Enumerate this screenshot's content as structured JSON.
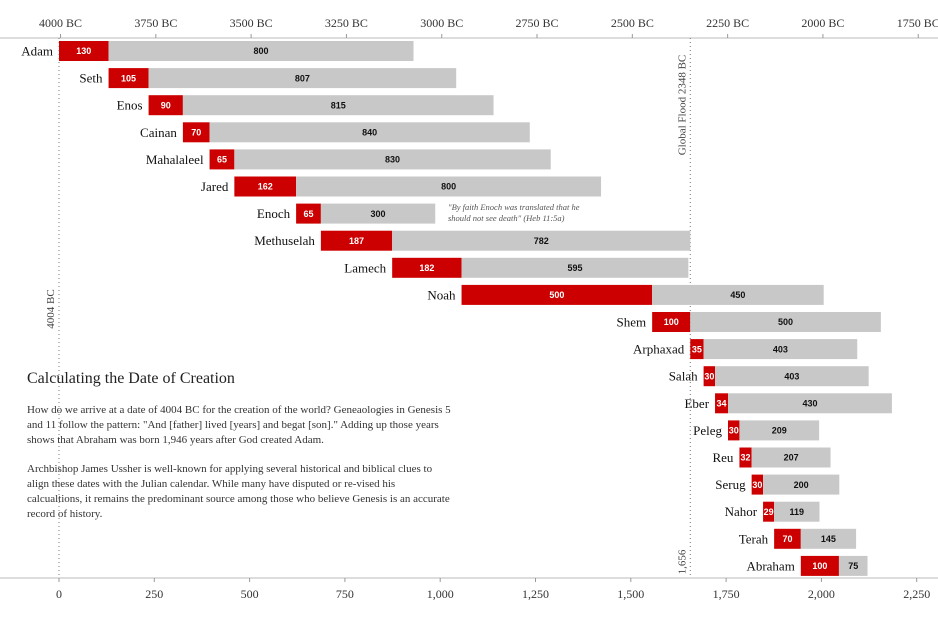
{
  "chart_data": {
    "type": "bar",
    "orientation": "horizontal-stacked-gantt",
    "x": {
      "min": 0,
      "max": 2300,
      "ticks": [
        0,
        250,
        500,
        750,
        1000,
        1250,
        1500,
        1750,
        2000,
        2250
      ],
      "tick_labels": [
        "0",
        "250",
        "500",
        "750",
        "1,000",
        "1,250",
        "1,500",
        "1,750",
        "2,000",
        "2,250"
      ]
    },
    "top_axis": {
      "ticks": [
        "4000 BC",
        "3750 BC",
        "3500 BC",
        "3250 BC",
        "3000 BC",
        "2750 BC",
        "2500 BC",
        "2250 BC",
        "2000 BC",
        "1750 BC"
      ],
      "tick_positions": [
        4,
        254,
        504,
        754,
        1004,
        1254,
        1504,
        1754,
        2004,
        2254
      ]
    },
    "series": [
      {
        "name": "",
        "color": "#cc0000",
        "label_color": "#ffffff"
      },
      {
        "name": "",
        "color": "#c8c8c8",
        "label_color": "#111111"
      }
    ],
    "rows": [
      {
        "name": "Adam",
        "start": 0,
        "begat": 130,
        "lived_after": 800
      },
      {
        "name": "Seth",
        "start": 130,
        "begat": 105,
        "lived_after": 807
      },
      {
        "name": "Enos",
        "start": 235,
        "begat": 90,
        "lived_after": 815
      },
      {
        "name": "Cainan",
        "start": 325,
        "begat": 70,
        "lived_after": 840
      },
      {
        "name": "Mahalaleel",
        "start": 395,
        "begat": 65,
        "lived_after": 830
      },
      {
        "name": "Jared",
        "start": 460,
        "begat": 162,
        "lived_after": 800
      },
      {
        "name": "Enoch",
        "start": 622,
        "begat": 65,
        "lived_after": 300
      },
      {
        "name": "Methuselah",
        "start": 687,
        "begat": 187,
        "lived_after": 782
      },
      {
        "name": "Lamech",
        "start": 874,
        "begat": 182,
        "lived_after": 595
      },
      {
        "name": "Noah",
        "start": 1056,
        "begat": 500,
        "lived_after": 450
      },
      {
        "name": "Shem",
        "start": 1556,
        "begat": 100,
        "lived_after": 500
      },
      {
        "name": "Arphaxad",
        "start": 1656,
        "begat": 35,
        "lived_after": 403
      },
      {
        "name": "Salah",
        "start": 1691,
        "begat": 30,
        "lived_after": 403
      },
      {
        "name": "Eber",
        "start": 1721,
        "begat": 34,
        "lived_after": 430
      },
      {
        "name": "Peleg",
        "start": 1755,
        "begat": 30,
        "lived_after": 209
      },
      {
        "name": "Reu",
        "start": 1785,
        "begat": 32,
        "lived_after": 207
      },
      {
        "name": "Serug",
        "start": 1817,
        "begat": 30,
        "lived_after": 200
      },
      {
        "name": "Nahor",
        "start": 1847,
        "begat": 29,
        "lived_after": 119
      },
      {
        "name": "Terah",
        "start": 1876,
        "begat": 70,
        "lived_after": 145
      },
      {
        "name": "Abraham",
        "start": 1946,
        "begat": 100,
        "lived_after": 75
      }
    ],
    "reference_lines": [
      {
        "x": 0,
        "label": "4004 BC"
      },
      {
        "x": 1656,
        "label": "Global Flood 2348 BC",
        "bottom_label": "1,656"
      }
    ],
    "annotations": [
      {
        "lines": [
          "\"By faith Enoch was translated that he",
          "should not see death\" (Heb 11:5a)"
        ]
      }
    ],
    "grid": false
  },
  "info": {
    "title": "Calculating the Date of Creation",
    "paragraph1": "How do we arrive at a date of 4004 BC for the creation of the world? Geneaologies in Genesis 5 and 11 follow the pattern: \"And [father] lived [years] and begat [son].\" Adding up those years shows that Abraham was born 1,946 years after God created Adam.",
    "paragraph2": "Archbishop James Ussher is well-known for applying several historical and biblical clues to align these dates with the Julian calendar. While many have disputed or re-vised his calcualtions, it remains the predominant source among those who believe Genesis is an accurate record of history."
  }
}
